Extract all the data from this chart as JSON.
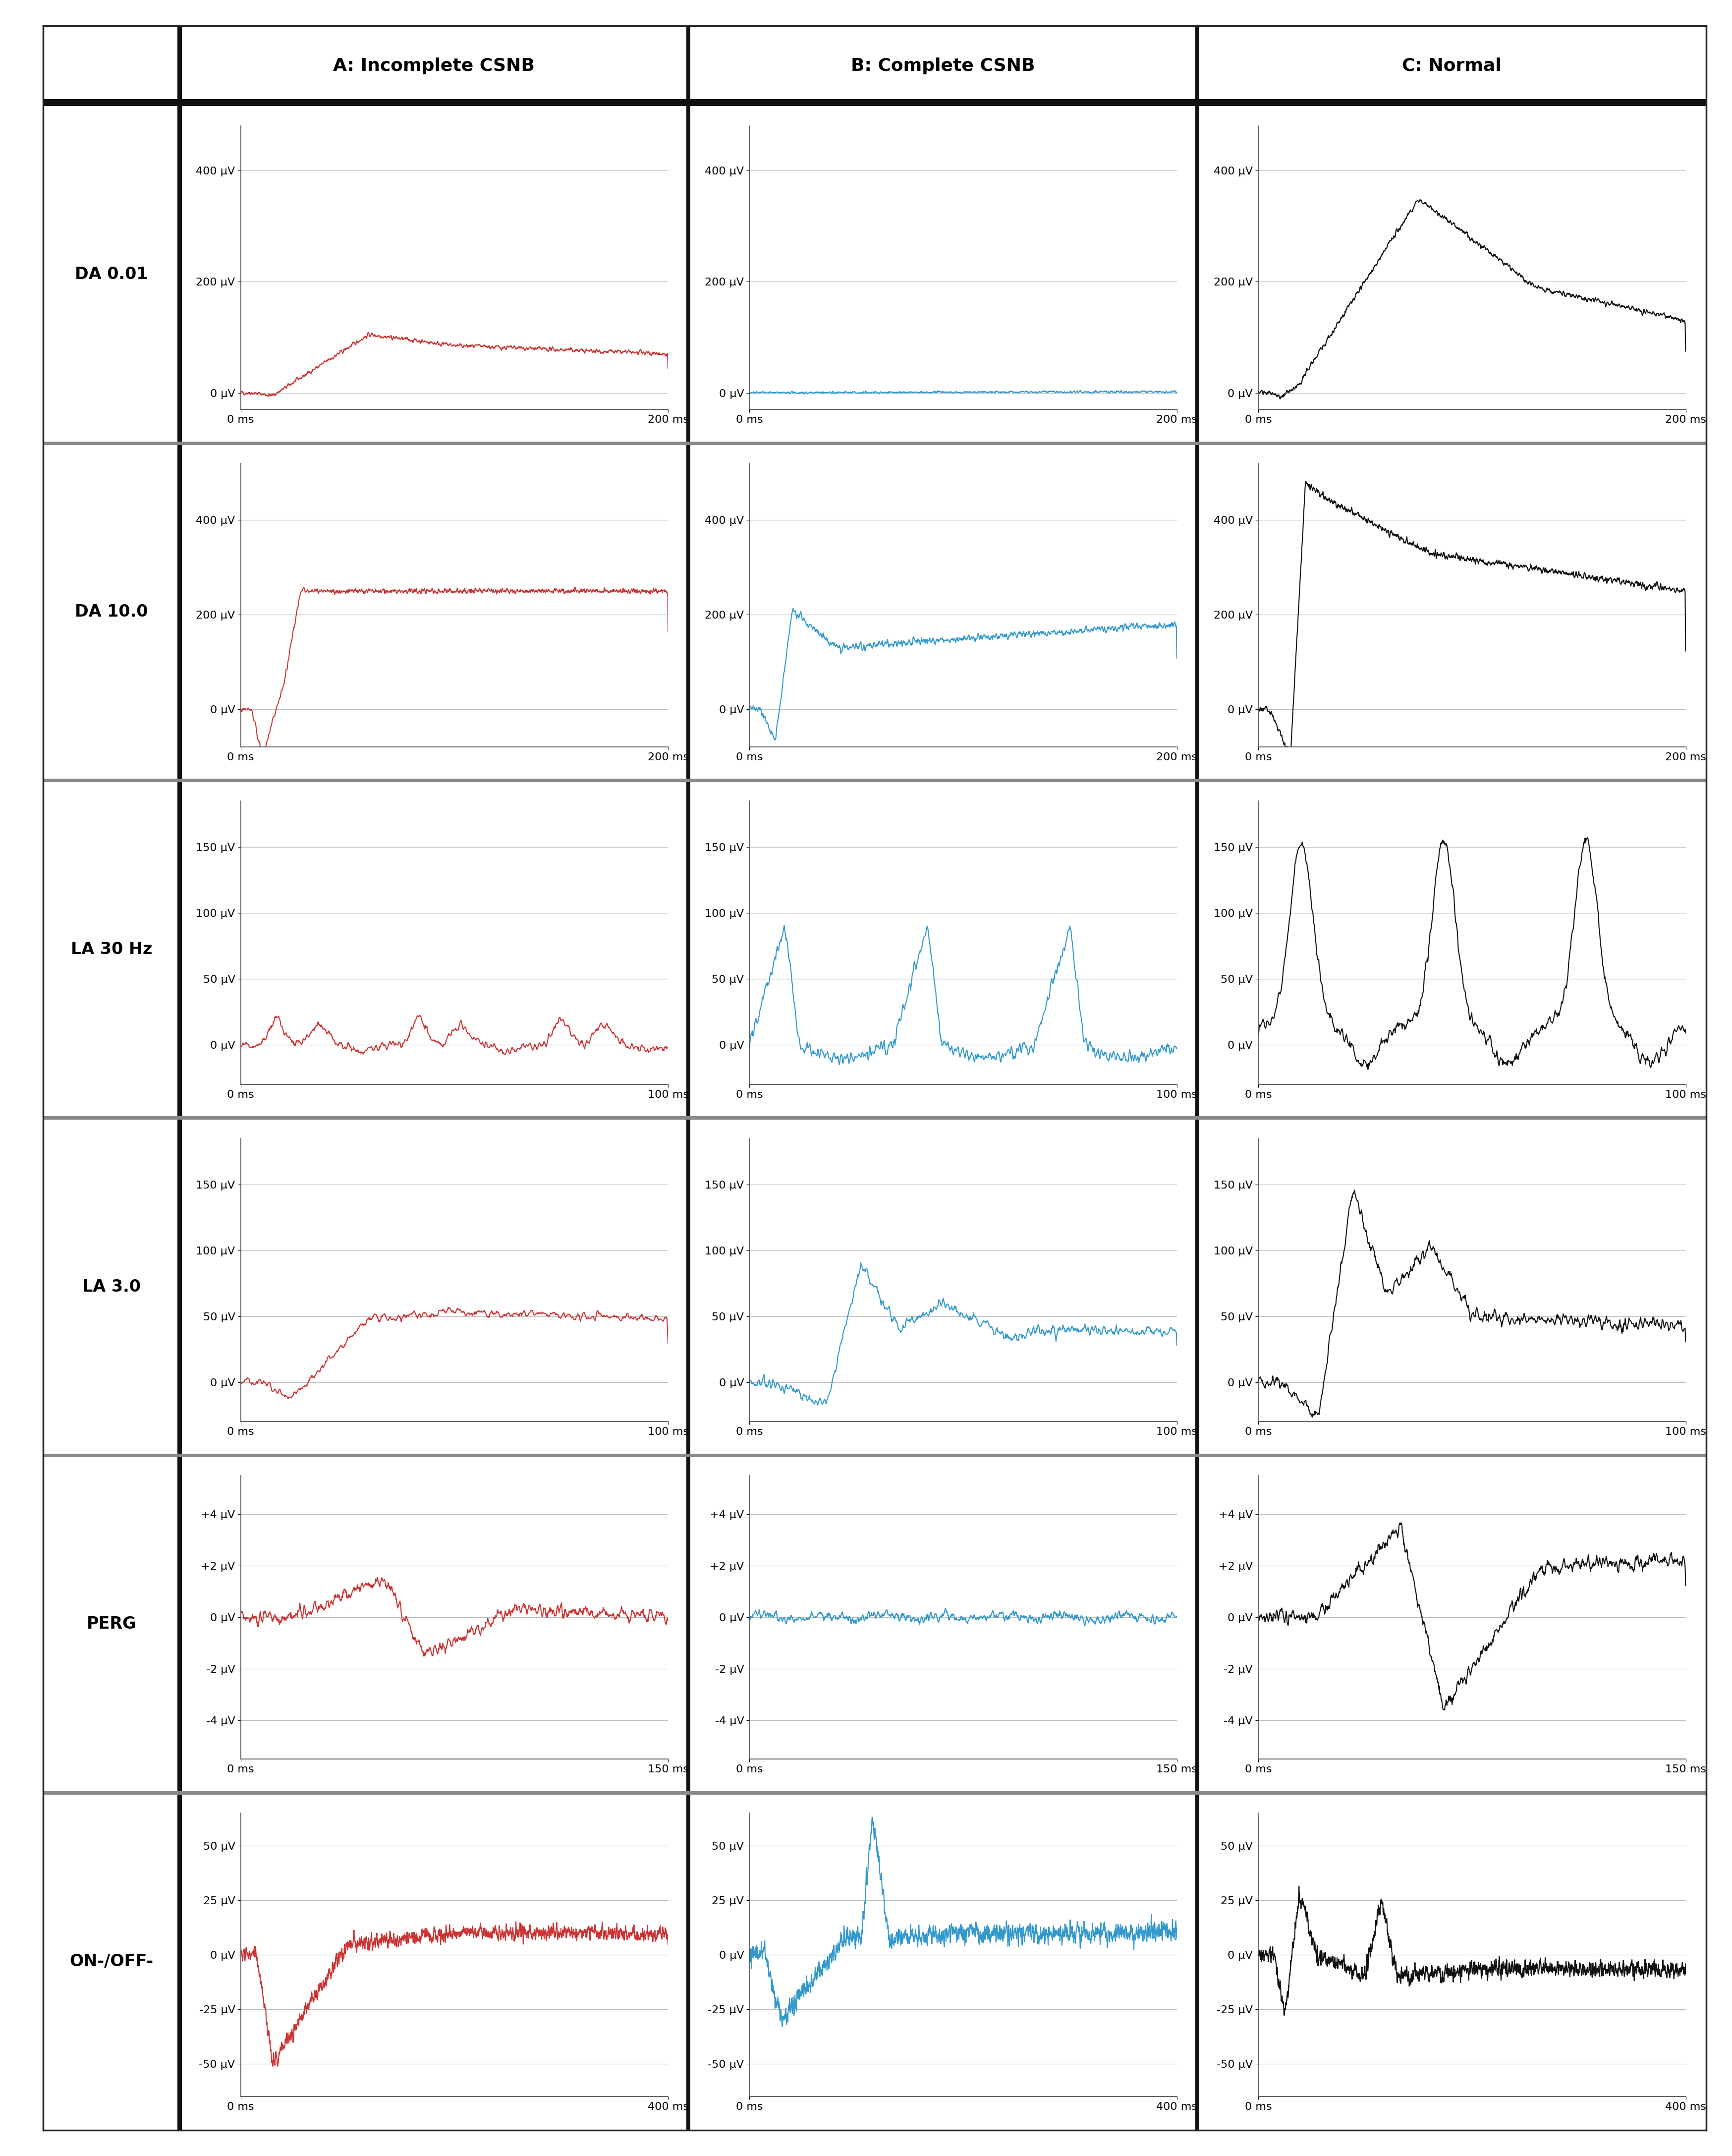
{
  "col_titles": [
    "A: Incomplete CSNB",
    "B: Complete CSNB",
    "C: Normal"
  ],
  "row_labels": [
    "DA 0.01",
    "DA 10.0",
    "LA 30 Hz",
    "LA 3.0",
    "PERG",
    "ON-/OFF-"
  ],
  "colors": {
    "A": "#cc3333",
    "B": "#3399cc",
    "C": "#111111"
  },
  "row_configs": [
    {
      "name": "DA 0.01",
      "xlim": [
        0,
        200
      ],
      "ylim": [
        -30,
        480
      ],
      "yticks": [
        0,
        200,
        400
      ],
      "ytick_labels": [
        "0 μV",
        "200 μV",
        "400 μV"
      ]
    },
    {
      "name": "DA 10.0",
      "xlim": [
        0,
        200
      ],
      "ylim": [
        -80,
        520
      ],
      "yticks": [
        0,
        200,
        400
      ],
      "ytick_labels": [
        "0 μV",
        "200 μV",
        "400 μV"
      ]
    },
    {
      "name": "LA 30 Hz",
      "xlim": [
        0,
        100
      ],
      "ylim": [
        -30,
        185
      ],
      "yticks": [
        0,
        50,
        100,
        150
      ],
      "ytick_labels": [
        "0 μV",
        "50 μV",
        "100 μV",
        "150 μV"
      ]
    },
    {
      "name": "LA 3.0",
      "xlim": [
        0,
        100
      ],
      "ylim": [
        -30,
        185
      ],
      "yticks": [
        0,
        50,
        100,
        150
      ],
      "ytick_labels": [
        "0 μV",
        "50 μV",
        "100 μV",
        "150 μV"
      ]
    },
    {
      "name": "PERG",
      "xlim": [
        0,
        150
      ],
      "ylim": [
        -5.5,
        5.5
      ],
      "yticks": [
        -4,
        -2,
        0,
        2,
        4
      ],
      "ytick_labels": [
        "-4 μV",
        "-2 μV",
        "0 μV",
        "+2 μV",
        "+4 μV"
      ]
    },
    {
      "name": "ON-/OFF-",
      "xlim": [
        0,
        400
      ],
      "ylim": [
        -65,
        65
      ],
      "yticks": [
        -50,
        -25,
        0,
        25,
        50
      ],
      "ytick_labels": [
        "-50 μV",
        "-25 μV",
        "0 μV",
        "25 μV",
        "50 μV"
      ]
    }
  ],
  "background": "#ffffff",
  "grid_color": "#bbbbbb",
  "border_color": "#222222",
  "divider_color": "#111111"
}
